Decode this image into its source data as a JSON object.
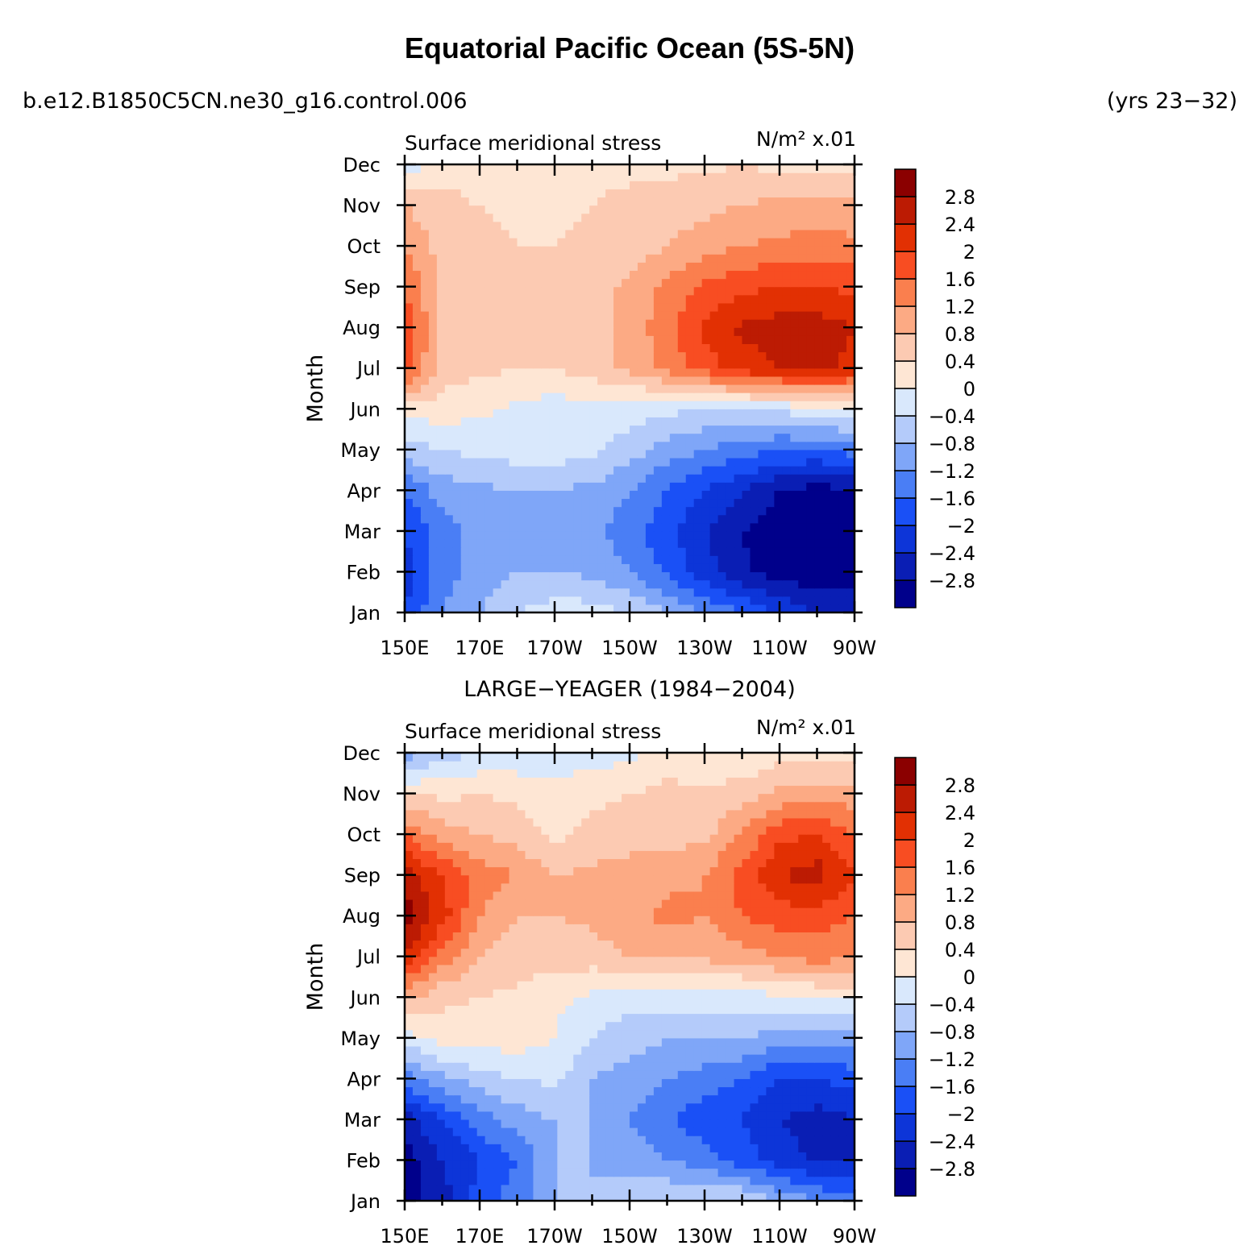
{
  "figure": {
    "title": "Equatorial Pacific Ocean (5S-5N)",
    "case_name": "b.e12.B1850C5CN.ne30_g16.control.006",
    "years": "(yrs 23−32)"
  },
  "chart_data": [
    {
      "type": "heatmap",
      "panel_title": "",
      "variable": "Surface meridional stress",
      "units": "N/m² x.01",
      "xlabel": "",
      "ylabel": "Month",
      "x_ticks": [
        "150E",
        "170E",
        "170W",
        "150W",
        "130W",
        "110W",
        "90W"
      ],
      "y_ticks": [
        "Jan",
        "Feb",
        "Mar",
        "Apr",
        "May",
        "Jun",
        "Jul",
        "Aug",
        "Sep",
        "Oct",
        "Nov",
        "Dec"
      ],
      "x_lon": [
        150,
        160,
        170,
        180,
        190,
        200,
        210,
        220,
        230,
        240,
        250,
        260,
        270
      ],
      "values": [
        [
          -2.0,
          -1.2,
          -0.8,
          -0.4,
          -0.2,
          -0.2,
          -0.4,
          -0.8,
          -1.2,
          -1.6,
          -2.0,
          -2.4,
          -2.4
        ],
        [
          -2.2,
          -1.4,
          -1.0,
          -0.8,
          -0.8,
          -0.9,
          -1.2,
          -1.7,
          -2.2,
          -2.7,
          -3.0,
          -3.1,
          -3.0
        ],
        [
          -2.0,
          -1.4,
          -1.0,
          -1.0,
          -1.0,
          -1.1,
          -1.4,
          -1.9,
          -2.4,
          -2.8,
          -3.1,
          -3.2,
          -3.1
        ],
        [
          -1.6,
          -1.0,
          -0.9,
          -0.8,
          -0.8,
          -0.9,
          -1.2,
          -1.6,
          -2.0,
          -2.4,
          -2.8,
          -3.0,
          -2.8
        ],
        [
          -0.6,
          -0.4,
          -0.3,
          -0.2,
          -0.2,
          -0.3,
          -0.6,
          -1.0,
          -1.2,
          -1.4,
          -1.6,
          -1.6,
          -1.4
        ],
        [
          0.2,
          0.2,
          0.1,
          -0.1,
          -0.2,
          -0.2,
          -0.2,
          -0.3,
          -0.4,
          -0.4,
          -0.3,
          -0.2,
          -0.1
        ],
        [
          1.8,
          0.6,
          0.5,
          0.4,
          0.4,
          0.6,
          0.9,
          1.3,
          1.8,
          2.2,
          2.4,
          2.5,
          2.3
        ],
        [
          1.9,
          0.7,
          0.6,
          0.6,
          0.7,
          0.7,
          0.9,
          1.5,
          2.1,
          2.5,
          2.6,
          2.6,
          2.4
        ],
        [
          1.6,
          0.7,
          0.6,
          0.5,
          0.5,
          0.6,
          0.9,
          1.3,
          1.7,
          1.9,
          2.0,
          2.0,
          1.9
        ],
        [
          1.2,
          0.6,
          0.5,
          0.4,
          0.4,
          0.5,
          0.6,
          0.8,
          1.0,
          1.2,
          1.3,
          1.4,
          1.3
        ],
        [
          0.8,
          0.5,
          0.4,
          0.3,
          0.3,
          0.4,
          0.5,
          0.6,
          0.7,
          0.8,
          0.9,
          0.9,
          0.9
        ],
        [
          -0.3,
          0.3,
          0.2,
          0.2,
          0.2,
          0.3,
          0.3,
          0.3,
          0.3,
          0.4,
          0.3,
          0.2,
          0.3
        ]
      ],
      "levels": [
        -2.8,
        -2.4,
        -2.0,
        -1.6,
        -1.2,
        -0.8,
        -0.4,
        0.0,
        0.4,
        0.8,
        1.2,
        1.6,
        2.0,
        2.4,
        2.8
      ],
      "colorbar_labels": [
        "2.8",
        "2.4",
        "2",
        "1.6",
        "1.2",
        "0.8",
        "0.4",
        "0",
        "−0.4",
        "−0.8",
        "−1.2",
        "−1.6",
        "−2",
        "−2.4",
        "−2.8"
      ]
    },
    {
      "type": "heatmap",
      "panel_title": "LARGE−YEAGER (1984−2004)",
      "variable": "Surface meridional stress",
      "units": "N/m² x.01",
      "xlabel": "",
      "ylabel": "Month",
      "x_ticks": [
        "150E",
        "170E",
        "170W",
        "150W",
        "130W",
        "110W",
        "90W"
      ],
      "y_ticks": [
        "Jan",
        "Feb",
        "Mar",
        "Apr",
        "May",
        "Jun",
        "Jul",
        "Aug",
        "Sep",
        "Oct",
        "Nov",
        "Dec"
      ],
      "x_lon": [
        150,
        160,
        170,
        180,
        190,
        200,
        210,
        220,
        230,
        240,
        250,
        260,
        270
      ],
      "values": [
        [
          -3.0,
          -2.6,
          -1.8,
          -1.4,
          -0.8,
          -0.8,
          -0.6,
          -0.4,
          -0.3,
          -0.4,
          -0.8,
          -1.2,
          -1.4
        ],
        [
          -3.0,
          -2.4,
          -2.0,
          -1.6,
          -0.8,
          -0.8,
          -1.0,
          -1.2,
          -1.4,
          -1.8,
          -2.2,
          -2.5,
          -2.4
        ],
        [
          -2.6,
          -2.0,
          -1.4,
          -1.0,
          -0.8,
          -0.8,
          -1.2,
          -1.6,
          -1.8,
          -2.0,
          -2.4,
          -2.6,
          -2.4
        ],
        [
          -1.4,
          -0.9,
          -0.6,
          -0.4,
          -0.3,
          -0.8,
          -1.0,
          -1.2,
          -1.4,
          -1.6,
          -2.0,
          -2.0,
          -1.8
        ],
        [
          -0.2,
          0.2,
          0.2,
          0.2,
          0.0,
          -0.4,
          -0.6,
          -0.8,
          -0.8,
          -0.8,
          -1.0,
          -1.1,
          -1.0
        ],
        [
          0.9,
          0.5,
          0.4,
          0.3,
          0.1,
          -0.1,
          -0.3,
          -0.2,
          -0.2,
          -0.2,
          -0.1,
          0.0,
          0.1
        ],
        [
          2.4,
          1.4,
          0.8,
          0.6,
          0.6,
          0.6,
          0.8,
          0.8,
          0.9,
          1.0,
          1.2,
          1.4,
          1.2
        ],
        [
          3.0,
          2.2,
          1.2,
          0.8,
          0.8,
          0.9,
          1.1,
          1.3,
          1.2,
          1.6,
          1.8,
          1.8,
          1.6
        ],
        [
          2.6,
          2.0,
          1.4,
          1.2,
          0.8,
          0.9,
          1.0,
          1.1,
          1.2,
          1.8,
          2.4,
          2.6,
          2.0
        ],
        [
          1.6,
          1.0,
          0.8,
          0.6,
          0.3,
          0.5,
          0.6,
          0.6,
          0.7,
          1.2,
          1.9,
          2.0,
          1.6
        ],
        [
          0.4,
          0.3,
          0.4,
          0.3,
          0.1,
          0.3,
          0.4,
          0.5,
          0.5,
          0.6,
          0.9,
          1.0,
          1.0
        ],
        [
          -1.0,
          -0.6,
          -0.4,
          -0.3,
          -0.2,
          -0.2,
          -0.1,
          0.2,
          0.1,
          0.0,
          0.2,
          0.3,
          0.2
        ]
      ],
      "levels": [
        -2.8,
        -2.4,
        -2.0,
        -1.6,
        -1.2,
        -0.8,
        -0.4,
        0.0,
        0.4,
        0.8,
        1.2,
        1.6,
        2.0,
        2.4,
        2.8
      ],
      "colorbar_labels": [
        "2.8",
        "2.4",
        "2",
        "1.6",
        "1.2",
        "0.8",
        "0.4",
        "0",
        "−0.4",
        "−0.8",
        "−1.2",
        "−1.6",
        "−2",
        "−2.4",
        "−2.8"
      ]
    }
  ],
  "colors": {
    "palette": [
      "#00008b",
      "#0a1eb4",
      "#0d35d8",
      "#1a50f6",
      "#4a7ef5",
      "#7fa6f8",
      "#b4cbfa",
      "#d9e8fc",
      "#fee6d4",
      "#fccab2",
      "#fcaa84",
      "#fa7f4e",
      "#f84d22",
      "#e23003",
      "#bc1b03",
      "#8b0000"
    ]
  }
}
